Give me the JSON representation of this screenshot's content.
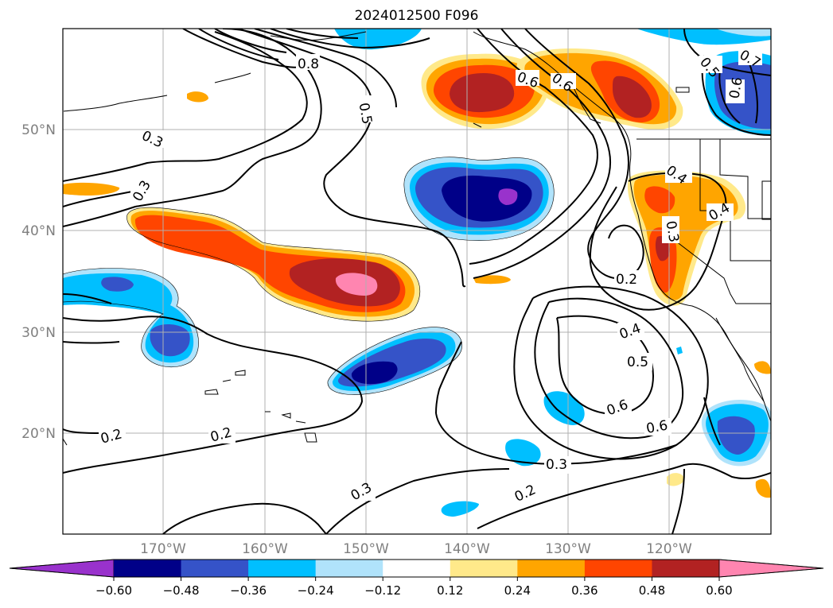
{
  "title": "2024012500 F096",
  "lat_labels": [
    "50°N",
    "40°N",
    "30°N",
    "20°N"
  ],
  "lon_labels": [
    "170°W",
    "160°W",
    "150°W",
    "140°W",
    "130°W",
    "120°W"
  ],
  "colorbar": {
    "colors": [
      "#9932cc",
      "#000088",
      "#3553c8",
      "#00bfff",
      "#b0e3fb",
      "#ffffff",
      "#ffe98a",
      "#ffa500",
      "#ff4500",
      "#b22222",
      "#ff85b0"
    ],
    "tick_labels": [
      "−0.60",
      "−0.48",
      "−0.36",
      "−0.24",
      "−0.12",
      "0.12",
      "0.24",
      "0.36",
      "0.48",
      "0.60"
    ]
  },
  "contour_labels": [
    "0.8",
    "0.5",
    "0.6",
    "0.6",
    "0.7",
    "0.5",
    "0.6",
    "0.3",
    "0.3",
    "0.4",
    "0.4",
    "0.3",
    "0.2",
    "0.4",
    "0.5",
    "0.6",
    "0.6",
    "0.3",
    "0.2",
    "0.2",
    "0.3",
    "0.2"
  ]
}
